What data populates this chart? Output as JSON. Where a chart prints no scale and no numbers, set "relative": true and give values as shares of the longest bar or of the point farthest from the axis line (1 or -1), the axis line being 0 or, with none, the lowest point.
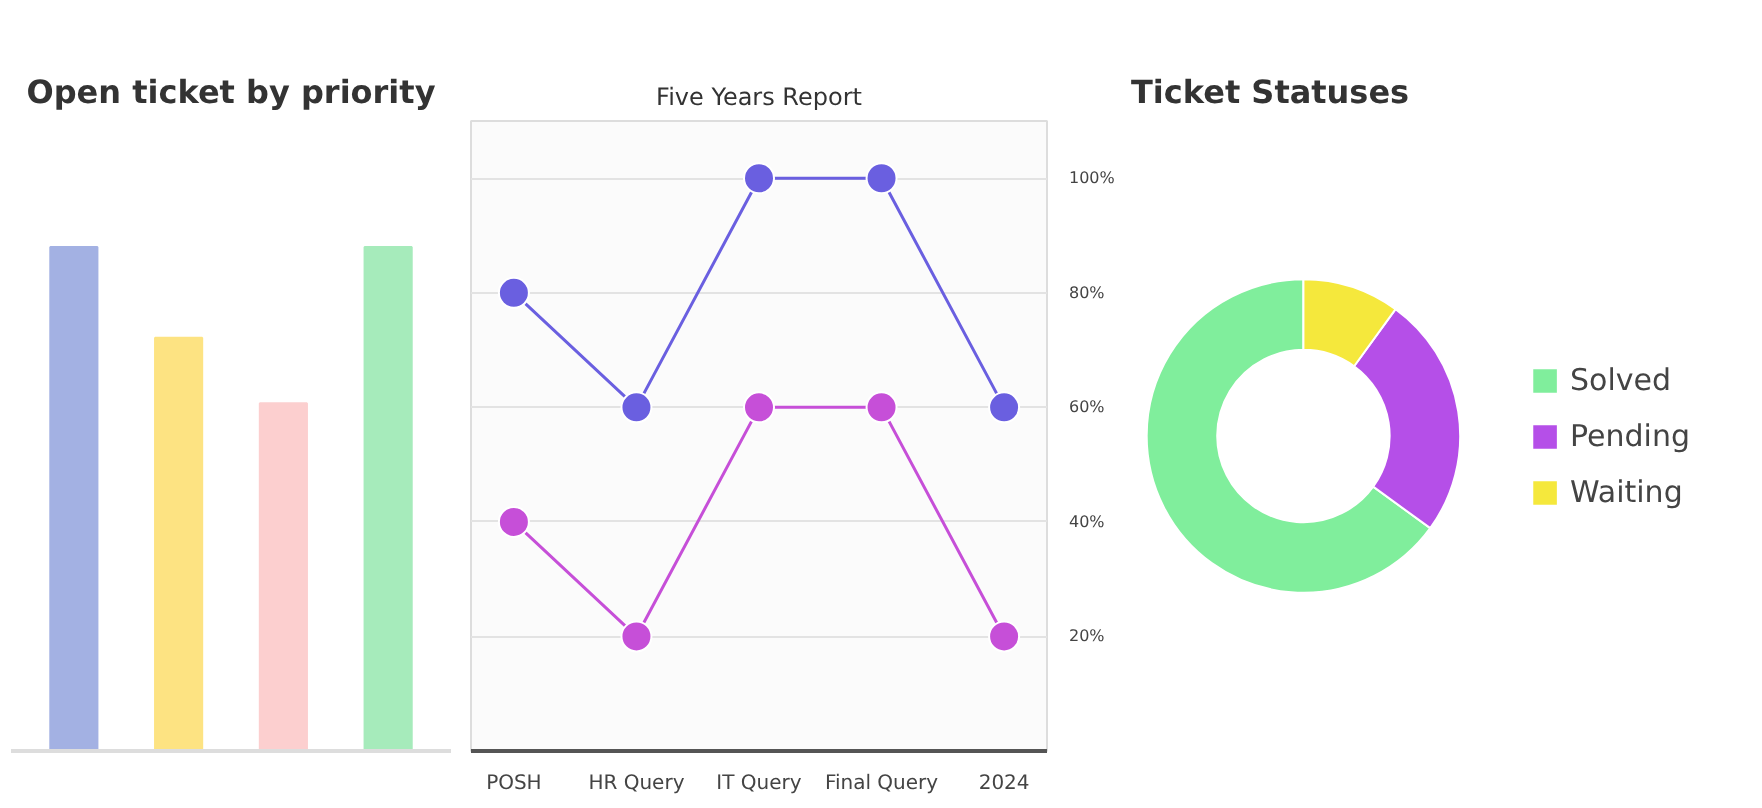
{
  "chart_data": [
    {
      "type": "bar",
      "title": "Open ticket by priority",
      "relative": true,
      "categories": [
        null,
        null,
        null,
        null
      ],
      "values": [
        1,
        0.82,
        0.69,
        1
      ],
      "colors": [
        "#a3b1e3",
        "#fde382",
        "#fccfcf",
        "#a6ebbb"
      ]
    },
    {
      "type": "line",
      "title": "Five Years Report",
      "categories": [
        "POSH",
        "HR Query",
        "IT Query",
        "Final Query",
        "2024"
      ],
      "ylim": [
        0,
        110
      ],
      "yticks": [
        {
          "value": 20,
          "label": "20%"
        },
        {
          "value": 40,
          "label": "40%"
        },
        {
          "value": 60,
          "label": "60%"
        },
        {
          "value": 80,
          "label": "80%"
        },
        {
          "value": 100,
          "label": "100%"
        }
      ],
      "grid": "y",
      "marker": "circle",
      "tick_labels": "xy",
      "series": [
        {
          "color": "#6a5fe0",
          "values": [
            80,
            60,
            100,
            100,
            60
          ]
        },
        {
          "color": "#c64fd8",
          "values": [
            40,
            20,
            60,
            60,
            20
          ]
        }
      ]
    },
    {
      "type": "donut",
      "title": "Ticket Statuses",
      "categories": [
        "Solved",
        "Pending",
        "Waiting"
      ],
      "values": [
        65,
        25,
        10
      ],
      "colors": [
        "#80ee9c",
        "#b54fe8",
        "#f5e83c"
      ],
      "legend": "right"
    }
  ]
}
